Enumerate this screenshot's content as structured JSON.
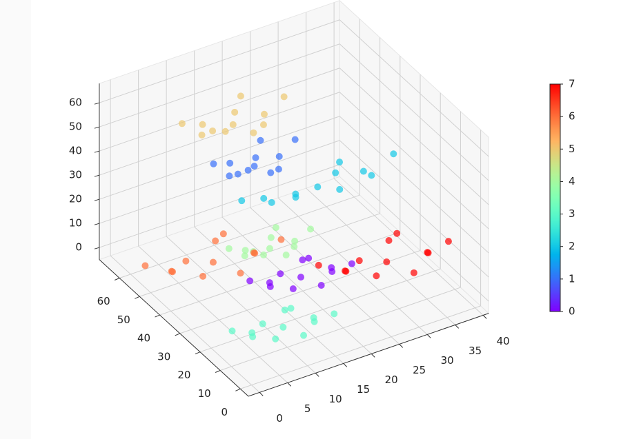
{
  "chart_data": {
    "type": "scatter3d",
    "x": [
      20,
      24.5,
      15.5,
      23,
      17,
      26,
      14,
      21.5,
      18.5,
      27.5,
      12.5,
      23,
      16,
      19.6,
      12.4,
      18.4,
      13.6,
      20.8,
      11.2,
      17.2,
      14.8,
      22,
      10,
      18.4,
      23,
      30.5,
      15.5,
      28,
      18,
      33,
      13,
      25.5,
      20.5,
      35.5,
      10.5,
      28,
      10.6,
      15.1,
      6.1,
      13.6,
      7.6,
      16.6,
      4.6,
      12.1,
      9.1,
      18.1,
      3.1,
      13.6,
      16.6,
      20.2,
      13,
      19,
      14.2,
      21.4,
      11.8,
      17.8,
      15.4,
      22.6,
      10.6,
      19,
      14,
      18.5,
      9.5,
      17,
      11,
      20,
      8,
      15.5,
      12.5,
      21.5,
      6.5,
      17,
      9,
      15,
      3,
      13,
      5,
      17,
      1,
      11,
      7,
      19,
      -1,
      13,
      31.6,
      37.6,
      25.6,
      35.6,
      27.6,
      39.6,
      23.6,
      33.6,
      29.6,
      40.5,
      21.6,
      35.6
    ],
    "y": [
      31,
      28,
      34,
      35.5,
      26.5,
      32.5,
      29.5,
      25,
      37,
      26.5,
      35.5,
      38.5,
      43,
      40.6,
      45.4,
      46.6,
      39.4,
      44.2,
      41.8,
      38.2,
      47.8,
      39.4,
      46.6,
      49,
      31,
      29,
      33,
      34,
      28,
      32,
      30,
      27,
      35,
      28,
      34,
      36,
      13.7,
      10.7,
      16.7,
      18.2,
      9.2,
      15.2,
      12.2,
      7.7,
      19.7,
      9.2,
      18.2,
      21.2,
      37,
      34.6,
      39.4,
      40.6,
      33.4,
      38.2,
      35.8,
      32.2,
      41.8,
      33.4,
      40.6,
      43,
      48,
      45,
      51,
      52.5,
      43.5,
      49.5,
      46.5,
      42,
      54,
      43.5,
      52.5,
      55.5,
      44,
      40,
      48,
      50,
      38,
      46,
      42,
      36,
      52,
      38,
      50,
      54,
      20.6,
      16.6,
      24.6,
      26.6,
      14.6,
      22.6,
      18.6,
      12.6,
      28.6,
      14.6,
      26.6,
      30.6
    ],
    "z": [
      0,
      1,
      -1,
      2,
      1,
      -2,
      2,
      0,
      -2,
      3,
      1,
      -1,
      40,
      43,
      37,
      46,
      43,
      34,
      46,
      40,
      34,
      49,
      43,
      37,
      35,
      37,
      33,
      39,
      37,
      31,
      39,
      35,
      31,
      41,
      37,
      33,
      0,
      1,
      -1,
      2,
      1,
      -2,
      2,
      0,
      -2,
      3,
      1,
      -1,
      10,
      12,
      8,
      14,
      12,
      6,
      14,
      10,
      6,
      16,
      12,
      8,
      55,
      58,
      52,
      61,
      58,
      49,
      61,
      55,
      49,
      64,
      58,
      52,
      5,
      7,
      3,
      9,
      7,
      1,
      9,
      5,
      1,
      11,
      7,
      3,
      5,
      7,
      3,
      9,
      7,
      1,
      9,
      5,
      1,
      11,
      7,
      3
    ],
    "c": [
      0,
      0,
      0,
      0,
      0,
      0,
      0,
      0,
      0,
      0,
      0,
      0,
      1,
      1,
      1,
      1,
      1,
      1,
      1,
      1,
      1,
      1,
      1,
      1,
      2,
      2,
      2,
      2,
      2,
      2,
      2,
      2,
      2,
      2,
      2,
      2,
      3,
      3,
      3,
      3,
      3,
      3,
      3,
      3,
      3,
      3,
      3,
      3,
      4,
      4,
      4,
      4,
      4,
      4,
      4,
      4,
      4,
      4,
      4,
      4,
      5,
      5,
      5,
      5,
      5,
      5,
      5,
      5,
      5,
      5,
      5,
      5,
      6,
      6,
      6,
      6,
      6,
      6,
      6,
      6,
      6,
      6,
      6,
      6,
      7,
      7,
      7,
      7,
      7,
      7,
      7,
      7,
      7,
      7,
      7,
      7
    ],
    "cmap": "rainbow",
    "alpha": 0.7,
    "xlim": [
      -2,
      41
    ],
    "ylim": [
      -4,
      70
    ],
    "zlim": [
      -5,
      68
    ],
    "xticks": [
      0,
      5,
      10,
      15,
      20,
      25,
      30,
      35,
      40
    ],
    "yticks": [
      0,
      10,
      20,
      30,
      40,
      50,
      60
    ],
    "zticks": [
      0,
      10,
      20,
      30,
      40,
      50,
      60
    ],
    "grid": true,
    "colorbar": {
      "lim": [
        0,
        7
      ],
      "ticks": [
        0,
        1,
        2,
        3,
        4,
        5,
        6,
        7
      ]
    }
  }
}
